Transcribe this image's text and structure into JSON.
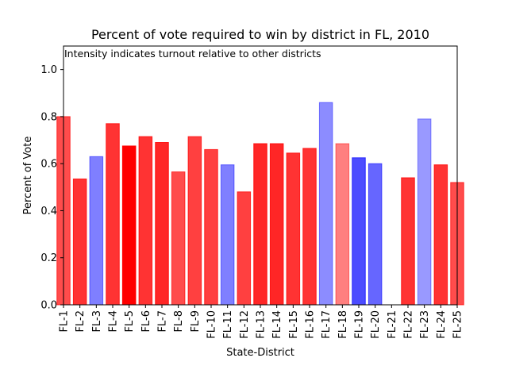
{
  "chart_data": {
    "type": "bar",
    "title": "Percent of vote required to win by district in FL, 2010",
    "xlabel": "State-District",
    "ylabel": "Percent of Vote",
    "annotation": "Intensity indicates turnout relative to other districts",
    "ylim": [
      0,
      1.1
    ],
    "yticks": [
      "0.0",
      "0.2",
      "0.4",
      "0.6",
      "0.8",
      "1.0"
    ],
    "grid": false,
    "categories": [
      "FL-1",
      "FL-2",
      "FL-3",
      "FL-4",
      "FL-5",
      "FL-6",
      "FL-7",
      "FL-8",
      "FL-9",
      "FL-10",
      "FL-11",
      "FL-12",
      "FL-13",
      "FL-14",
      "FL-15",
      "FL-16",
      "FL-17",
      "FL-18",
      "FL-19",
      "FL-20",
      "FL-21",
      "FL-22",
      "FL-23",
      "FL-24",
      "FL-25"
    ],
    "values": [
      0.8,
      0.535,
      0.63,
      0.77,
      0.675,
      0.715,
      0.69,
      0.565,
      0.715,
      0.66,
      0.595,
      0.48,
      0.685,
      0.685,
      0.645,
      0.665,
      0.86,
      0.685,
      0.625,
      0.6,
      0.0,
      0.54,
      0.79,
      0.595,
      0.52
    ],
    "party_colors": [
      "#ff0000",
      "#ff0000",
      "#0000ff",
      "#ff0000",
      "#ff0000",
      "#ff0000",
      "#ff0000",
      "#ff0000",
      "#ff0000",
      "#ff0000",
      "#0000ff",
      "#ff0000",
      "#ff0000",
      "#ff0000",
      "#ff0000",
      "#ff0000",
      "#0000ff",
      "#ff0000",
      "#0000ff",
      "#0000ff",
      "#ff0000",
      "#ff0000",
      "#0000ff",
      "#ff0000",
      "#ff0000"
    ],
    "intensity": [
      0.7,
      0.8,
      0.5,
      0.8,
      1.0,
      0.8,
      0.85,
      0.7,
      0.75,
      0.75,
      0.5,
      0.75,
      0.85,
      0.85,
      0.8,
      0.8,
      0.45,
      0.5,
      0.7,
      0.6,
      0.0,
      0.8,
      0.4,
      0.8,
      0.7
    ]
  }
}
